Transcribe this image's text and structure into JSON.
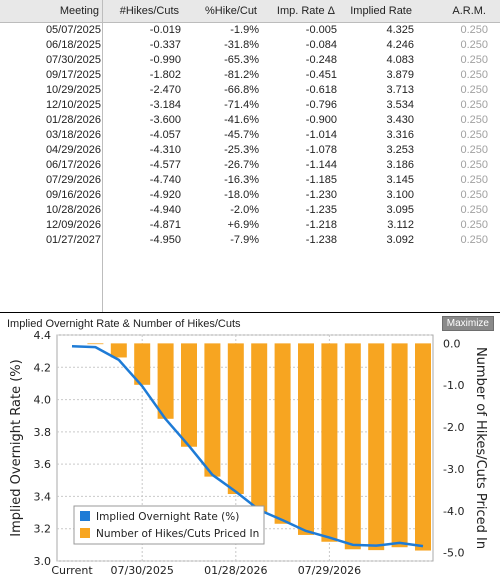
{
  "table": {
    "headers": [
      "Meeting",
      "#Hikes/Cuts",
      "%Hike/Cut",
      "Imp. Rate Δ",
      "Implied Rate",
      "A.R.M."
    ],
    "rows": [
      [
        "05/07/2025",
        "-0.019",
        "-1.9%",
        "-0.005",
        "4.325",
        "0.250"
      ],
      [
        "06/18/2025",
        "-0.337",
        "-31.8%",
        "-0.084",
        "4.246",
        "0.250"
      ],
      [
        "07/30/2025",
        "-0.990",
        "-65.3%",
        "-0.248",
        "4.083",
        "0.250"
      ],
      [
        "09/17/2025",
        "-1.802",
        "-81.2%",
        "-0.451",
        "3.879",
        "0.250"
      ],
      [
        "10/29/2025",
        "-2.470",
        "-66.8%",
        "-0.618",
        "3.713",
        "0.250"
      ],
      [
        "12/10/2025",
        "-3.184",
        "-71.4%",
        "-0.796",
        "3.534",
        "0.250"
      ],
      [
        "01/28/2026",
        "-3.600",
        "-41.6%",
        "-0.900",
        "3.430",
        "0.250"
      ],
      [
        "03/18/2026",
        "-4.057",
        "-45.7%",
        "-1.014",
        "3.316",
        "0.250"
      ],
      [
        "04/29/2026",
        "-4.310",
        "-25.3%",
        "-1.078",
        "3.253",
        "0.250"
      ],
      [
        "06/17/2026",
        "-4.577",
        "-26.7%",
        "-1.144",
        "3.186",
        "0.250"
      ],
      [
        "07/29/2026",
        "-4.740",
        "-16.3%",
        "-1.185",
        "3.145",
        "0.250"
      ],
      [
        "09/16/2026",
        "-4.920",
        "-18.0%",
        "-1.230",
        "3.100",
        "0.250"
      ],
      [
        "10/28/2026",
        "-4.940",
        "-2.0%",
        "-1.235",
        "3.095",
        "0.250"
      ],
      [
        "12/09/2026",
        "-4.871",
        "+6.9%",
        "-1.218",
        "3.112",
        "0.250"
      ],
      [
        "01/27/2027",
        "-4.950",
        "-7.9%",
        "-1.238",
        "3.092",
        "0.250"
      ]
    ]
  },
  "chart_header": {
    "title": "Implied Overnight Rate & Number of Hikes/Cuts",
    "maximize_label": "Maximize"
  },
  "colors": {
    "line": "#1e7bd6",
    "bars": "#f7a521",
    "grid": "#c9c9c9"
  },
  "chart_data": {
    "type": "bar",
    "categories": [
      "Current",
      "05/07/2025",
      "06/18/2025",
      "07/30/2025",
      "09/17/2025",
      "10/29/2025",
      "12/10/2025",
      "01/28/2026",
      "03/18/2026",
      "04/29/2026",
      "06/17/2026",
      "07/29/2026",
      "09/16/2026",
      "10/28/2026",
      "12/09/2026",
      "01/27/2027"
    ],
    "x_tick_labels": [
      "Current",
      "07/30/2025",
      "01/28/2026",
      "07/29/2026"
    ],
    "x_tick_categories": [
      "Current",
      "07/30/2025",
      "01/28/2026",
      "07/29/2026"
    ],
    "series": [
      {
        "name": "Implied Overnight Rate (%)",
        "type": "line",
        "axis": "left",
        "values": [
          4.33,
          4.325,
          4.246,
          4.083,
          3.879,
          3.713,
          3.534,
          3.43,
          3.316,
          3.253,
          3.186,
          3.145,
          3.1,
          3.095,
          3.112,
          3.092
        ]
      },
      {
        "name": "Number of Hikes/Cuts Priced In",
        "type": "bar",
        "axis": "right",
        "values": [
          null,
          -0.019,
          -0.337,
          -0.99,
          -1.802,
          -2.47,
          -3.184,
          -3.6,
          -4.057,
          -4.31,
          -4.577,
          -4.74,
          -4.92,
          -4.94,
          -4.871,
          -4.95
        ]
      }
    ],
    "y_left": {
      "label": "Implied Overnight Rate (%)",
      "ylim": [
        3.0,
        4.4
      ],
      "ticks": [
        "3.0",
        "3.2",
        "3.4",
        "3.6",
        "3.8",
        "4.0",
        "4.2",
        "4.4"
      ]
    },
    "y_right": {
      "label": "Number of Hikes/Cuts Priced In",
      "ylim": [
        -5.2,
        0.2
      ],
      "ticks": [
        "0.0",
        "-1.0",
        "-2.0",
        "-3.0",
        "-4.0",
        "-5.0"
      ]
    },
    "grid": true,
    "legend_position": "bottom-left"
  }
}
